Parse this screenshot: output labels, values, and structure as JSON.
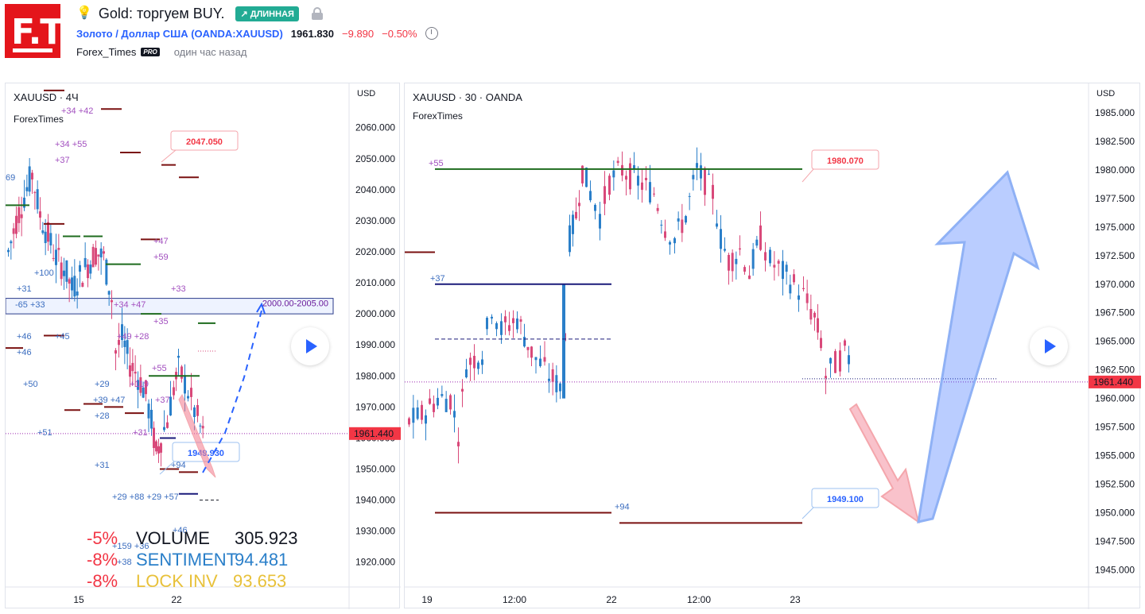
{
  "header": {
    "logo_text": "F.T.",
    "title": "Gold: торгуем BUY.",
    "badge": "↗ ДЛИННАЯ",
    "symbol": "Золото / Доллар США (OANDA:XAUUSD)",
    "price": "1961.830",
    "change": "−9.890",
    "change_pct": "−0.50%",
    "author": "Forex_Times",
    "pro_badge": "PRO",
    "time_ago": "один час назад"
  },
  "left_panel": {
    "title": "XAUUSD · 4Ч",
    "subtitle": "ForexTimes",
    "currency": "USD",
    "price_label": "1961.440",
    "callout_high": "2047.050",
    "callout_low": "1949.930",
    "zone_label": "2000.00-2005.00",
    "x_ticks": [
      "15",
      "22"
    ],
    "annotations": [
      "+34 +42",
      "+34 +55",
      "+37",
      "+47",
      "+59",
      "+33",
      "+35",
      "+100",
      "+31",
      "-65 +33",
      "+34 +47",
      "+46",
      "+45",
      "+46",
      "+49 +28",
      "+55",
      "+50",
      "+29",
      "+39 +47",
      "+28",
      "+51",
      "+119",
      "+37",
      "+31",
      "+94",
      "+31",
      "+29 +88 +29 +57",
      "+159 +36",
      "+38",
      "69",
      "+46"
    ],
    "stats": [
      {
        "pct": "-5%",
        "name": "VOLUME",
        "value": "305.923",
        "color": "#131722"
      },
      {
        "pct": "-8%",
        "name": "SENTIMENT",
        "value": "94.481",
        "color": "#2a7fc9"
      },
      {
        "pct": "-8%",
        "name": "LOCK INV",
        "value": "93.653",
        "color": "#e8c13a"
      }
    ]
  },
  "right_panel": {
    "title": "XAUUSD · 30 · OANDA",
    "subtitle": "ForexTimes",
    "currency": "USD",
    "price_label": "1961.440",
    "callout_high": "1980.070",
    "callout_low": "1949.100",
    "x_ticks": [
      "19",
      "12:00",
      "22",
      "12:00",
      "23"
    ],
    "annotations": [
      "+55",
      "+37",
      "+94"
    ]
  },
  "chart_data": [
    {
      "type": "candlestick",
      "title": "XAUUSD · 4Ч",
      "ylabel": "USD",
      "ylim": [
        1912,
        2074
      ],
      "y_ticks": [
        2060,
        2050,
        2040,
        2030,
        2020,
        2010,
        2000,
        1990,
        1980,
        1970,
        1960,
        1950,
        1940,
        1930,
        1920
      ],
      "last_price": 1961.44,
      "levels": {
        "target_high": 2047.05,
        "target_low": 1949.93,
        "zone": [
          2000.0,
          2005.0
        ]
      }
    },
    {
      "type": "candlestick",
      "title": "XAUUSD · 30 · OANDA",
      "ylabel": "USD",
      "ylim": [
        1943.5,
        1987.5
      ],
      "y_ticks": [
        1985.0,
        1982.5,
        1980.0,
        1977.5,
        1975.0,
        1972.5,
        1970.0,
        1967.5,
        1965.0,
        1962.5,
        1960.0,
        1957.5,
        1955.0,
        1952.5,
        1950.0,
        1947.5,
        1945.0
      ],
      "last_price": 1961.44,
      "levels": {
        "target_high": 1980.07,
        "target_low": 1949.1
      }
    }
  ],
  "colors": {
    "up": "#2a7fc9",
    "down": "#d9497a",
    "green_level": "#1e6b1e",
    "red_level": "#7a1010",
    "navy_level": "#1a1a7a"
  }
}
